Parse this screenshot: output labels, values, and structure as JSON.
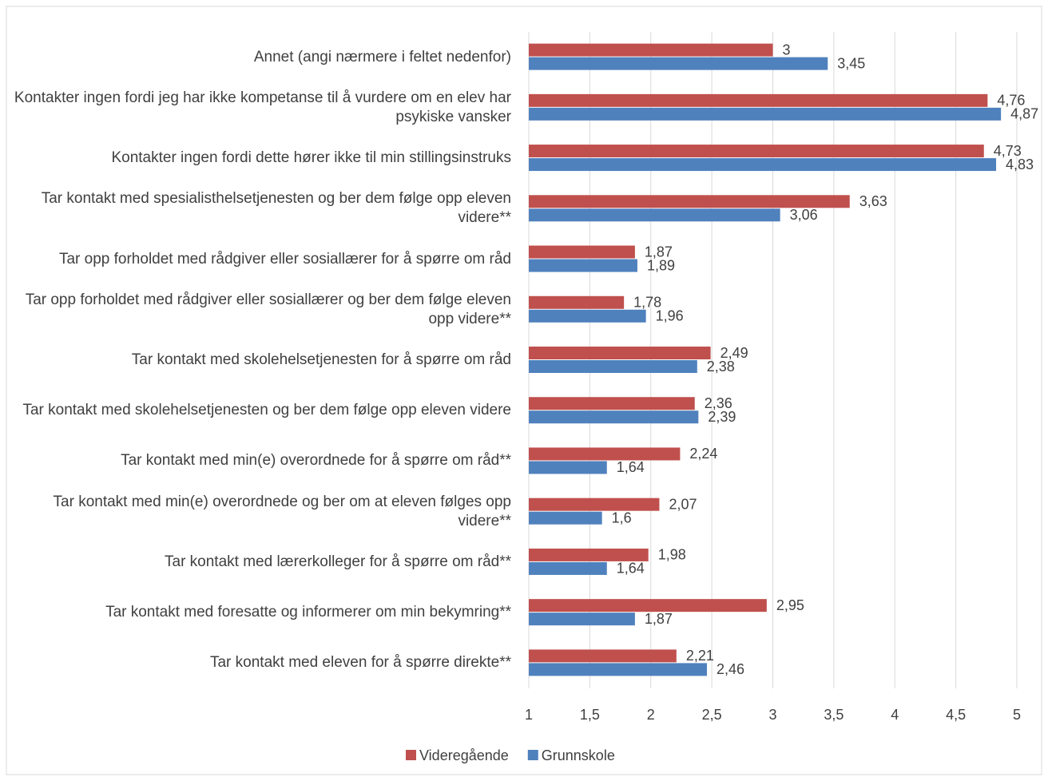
{
  "chart_data": {
    "type": "bar",
    "orientation": "horizontal",
    "categories": [
      "Annet (angi nærmere i feltet nedenfor)",
      "Kontakter ingen fordi jeg har ikke kompetanse til å vurdere om en elev har psykiske vansker",
      "Kontakter ingen fordi dette hører ikke til min stillingsinstruks",
      "Tar kontakt med spesialisthelsetjenesten og ber dem følge opp eleven videre**",
      "Tar opp forholdet med rådgiver eller sosiallærer for å spørre om råd",
      "Tar opp forholdet med rådgiver eller sosiallærer og ber dem følge eleven opp videre**",
      "Tar kontakt med skolehelsetjenesten for å spørre om råd",
      "Tar kontakt med skolehelsetjenesten og ber dem følge opp eleven videre",
      "Tar kontakt med min(e) overordnede for å spørre om råd**",
      "Tar kontakt med min(e) overordnede og ber om at eleven følges opp videre**",
      "Tar kontakt med lærerkolleger for å spørre om råd**",
      "Tar kontakt med foresatte og informerer om min bekymring**",
      "Tar kontakt med eleven for å spørre direkte**"
    ],
    "series": [
      {
        "name": "Videregående",
        "color": "#c0504d",
        "values": [
          3,
          4.76,
          4.73,
          3.63,
          1.87,
          1.78,
          2.49,
          2.36,
          2.24,
          2.07,
          1.98,
          2.95,
          2.21
        ],
        "value_labels": [
          "3",
          "4,76",
          "4,73",
          "3,63",
          "1,87",
          "1,78",
          "2,49",
          "2,36",
          "2,24",
          "2,07",
          "1,98",
          "2,95",
          "2,21"
        ]
      },
      {
        "name": "Grunnskole",
        "color": "#4f81bd",
        "values": [
          3.45,
          4.87,
          4.83,
          3.06,
          1.89,
          1.96,
          2.38,
          2.39,
          1.64,
          1.6,
          1.64,
          1.87,
          2.46
        ],
        "value_labels": [
          "3,45",
          "4,87",
          "4,83",
          "3,06",
          "1,89",
          "1,96",
          "2,38",
          "2,39",
          "1,64",
          "1,6",
          "1,64",
          "1,87",
          "2,46"
        ]
      }
    ],
    "xlim": [
      1,
      5
    ],
    "xticks": [
      1,
      {
        "value": 1.5,
        "label": "1,5"
      },
      2,
      {
        "value": 2.5,
        "label": "2,5"
      },
      3,
      {
        "value": 3.5,
        "label": "3,5"
      },
      4,
      {
        "value": 4.5,
        "label": "4,5"
      },
      5
    ],
    "grid": true,
    "legend": "bottom"
  }
}
